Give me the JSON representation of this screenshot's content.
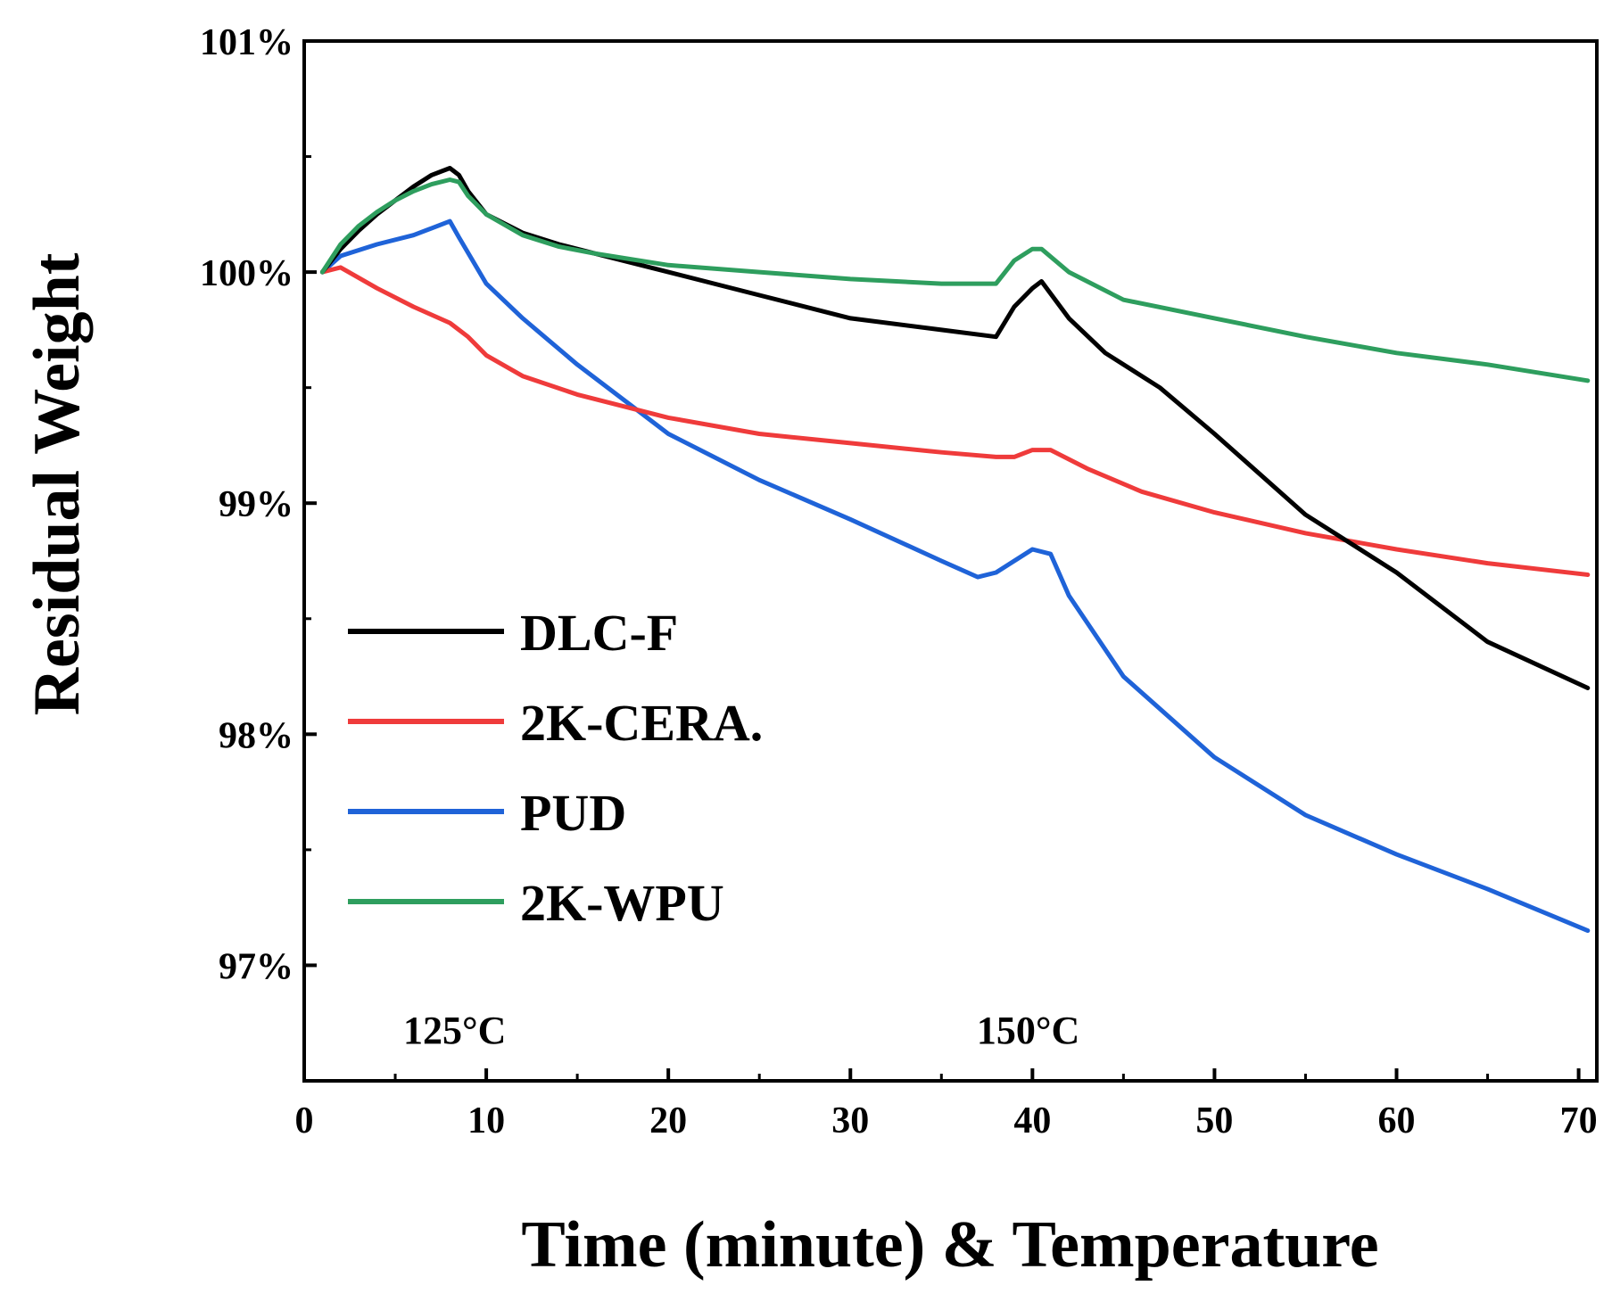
{
  "chart_data": {
    "type": "line",
    "title": "",
    "xlabel": "Time (minute) & Temperature",
    "ylabel": "Residual Weight",
    "xlim": [
      0,
      71
    ],
    "ylim": [
      96.5,
      101
    ],
    "x_ticks": [
      0,
      10,
      20,
      30,
      40,
      50,
      60,
      70
    ],
    "x_tick_labels": [
      "0",
      "10",
      "20",
      "30",
      "40",
      "50",
      "60",
      "70"
    ],
    "y_ticks": [
      97,
      98,
      99,
      100,
      101
    ],
    "y_tick_labels": [
      "97%",
      "98%",
      "99%",
      "100%",
      "101%"
    ],
    "legend_position": "center-left",
    "grid": false,
    "annotations": [
      {
        "text": "125°C",
        "x": 9
      },
      {
        "text": "150°C",
        "x": 40.5
      }
    ],
    "series": [
      {
        "name": "DLC-F",
        "color": "#000000",
        "x": [
          1,
          2,
          3,
          4,
          5,
          6,
          7,
          8,
          8.5,
          9,
          10,
          12,
          14,
          16,
          20,
          25,
          30,
          35,
          38,
          39,
          40,
          40.5,
          42,
          44,
          47,
          50,
          55,
          60,
          65,
          70.5
        ],
        "y": [
          100.0,
          100.1,
          100.18,
          100.25,
          100.31,
          100.37,
          100.42,
          100.45,
          100.42,
          100.35,
          100.25,
          100.17,
          100.12,
          100.08,
          100.0,
          99.9,
          99.8,
          99.75,
          99.72,
          99.85,
          99.93,
          99.96,
          99.8,
          99.65,
          99.5,
          99.3,
          98.95,
          98.7,
          98.4,
          98.2
        ]
      },
      {
        "name": "2K-CERA.",
        "color": "#ef3b3b",
        "x": [
          1,
          2,
          4,
          6,
          8,
          9,
          10,
          12,
          15,
          20,
          25,
          30,
          35,
          38,
          39,
          40,
          41,
          43,
          46,
          50,
          55,
          60,
          65,
          70.5
        ],
        "y": [
          100.0,
          100.02,
          99.93,
          99.85,
          99.78,
          99.72,
          99.64,
          99.55,
          99.47,
          99.37,
          99.3,
          99.26,
          99.22,
          99.2,
          99.2,
          99.23,
          99.23,
          99.15,
          99.05,
          98.96,
          98.87,
          98.8,
          98.74,
          98.69
        ]
      },
      {
        "name": "PUD",
        "color": "#1f63d8",
        "x": [
          1,
          2,
          4,
          6,
          7,
          8,
          8.5,
          10,
          12,
          15,
          18,
          20,
          25,
          30,
          35,
          37,
          38,
          39,
          40,
          41,
          42,
          45,
          50,
          55,
          60,
          65,
          70.5
        ],
        "y": [
          100.0,
          100.07,
          100.12,
          100.16,
          100.19,
          100.22,
          100.15,
          99.95,
          99.8,
          99.6,
          99.42,
          99.3,
          99.1,
          98.93,
          98.75,
          98.68,
          98.7,
          98.75,
          98.8,
          98.78,
          98.6,
          98.25,
          97.9,
          97.65,
          97.48,
          97.33,
          97.15
        ]
      },
      {
        "name": "2K-WPU",
        "color": "#2e9e5e",
        "x": [
          1,
          2,
          3,
          4,
          5,
          6,
          7,
          8,
          8.5,
          9,
          10,
          12,
          14,
          16,
          20,
          25,
          30,
          35,
          38,
          39,
          40,
          40.5,
          42,
          45,
          50,
          55,
          60,
          65,
          70.5
        ],
        "y": [
          100.0,
          100.12,
          100.2,
          100.26,
          100.31,
          100.35,
          100.38,
          100.4,
          100.39,
          100.33,
          100.25,
          100.16,
          100.11,
          100.08,
          100.03,
          100.0,
          99.97,
          99.95,
          99.95,
          100.05,
          100.1,
          100.1,
          100.0,
          99.88,
          99.8,
          99.72,
          99.65,
          99.6,
          99.53
        ]
      }
    ]
  }
}
